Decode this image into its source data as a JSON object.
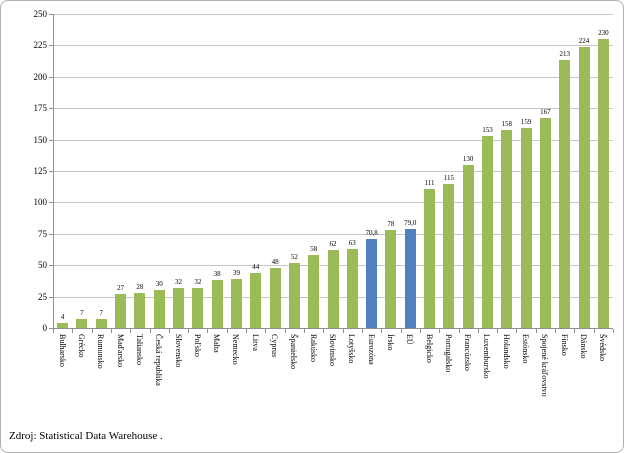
{
  "source_note": "Zdroj: Statistical Data Warehouse .",
  "chart_data": {
    "type": "bar",
    "title": "",
    "xlabel": "",
    "ylabel": "",
    "ylim": [
      0,
      250
    ],
    "ytick_interval": 25,
    "yticks": [
      0,
      25,
      50,
      75,
      100,
      125,
      150,
      175,
      200,
      225,
      250
    ],
    "grid": true,
    "legend_position": "none",
    "categories": [
      "Bulharsko",
      "Grécko",
      "Rumunsko",
      "Maďarsko",
      "Taliansko",
      "Česká republika",
      "Slovensko",
      "Poľsko",
      "Malta",
      "Nemecko",
      "Litva",
      "Cyprus",
      "Španielsko",
      "Rakúsko",
      "Slovinsko",
      "Lotyšsko",
      "Eurozóna",
      "Írsko",
      "EÚ",
      "Belgicko",
      "Portugalsko",
      "Francúzsko",
      "Luxembursko",
      "Holandsko",
      "Estónsko",
      "Spojené kráľovstvo",
      "Fínsko",
      "Dánsko",
      "Švédsko"
    ],
    "values": [
      4,
      7,
      7,
      27,
      28,
      30,
      32,
      32,
      38,
      39,
      44,
      48,
      52,
      58,
      62,
      63,
      70.8,
      78,
      79.0,
      111,
      115,
      130,
      153,
      158,
      159,
      167,
      213,
      224,
      230
    ],
    "value_labels": [
      "4",
      "7",
      "7",
      "27",
      "28",
      "30",
      "32",
      "32",
      "38",
      "39",
      "44",
      "48",
      "52",
      "58",
      "62",
      "63",
      "70,8",
      "78",
      "79,0",
      "111",
      "115",
      "130",
      "153",
      "158",
      "159",
      "167",
      "213",
      "224",
      "230"
    ],
    "highlight_categories": [
      "Eurozóna",
      "EÚ"
    ],
    "colors": {
      "bar_default": "#9BBB59",
      "bar_highlight": "#4F81BD",
      "gridline": "#c6c6c6",
      "axis": "#8f8f8f",
      "text": "#000000"
    }
  }
}
